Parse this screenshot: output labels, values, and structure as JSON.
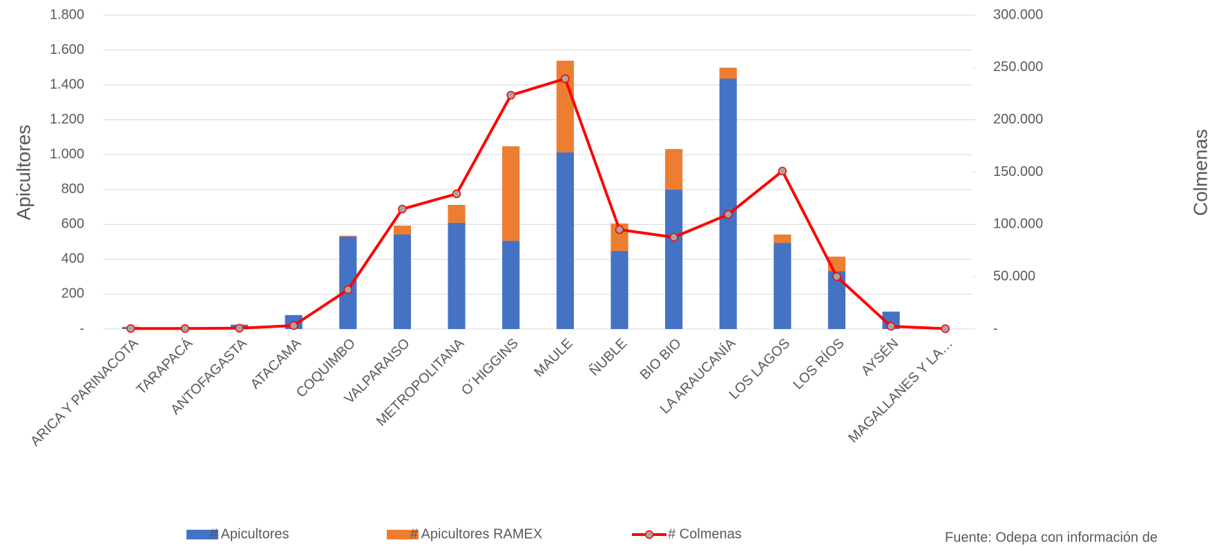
{
  "chart_data": {
    "type": "bar_line",
    "y_label": "Apicultores",
    "y2_label": "Colmenas",
    "categories": [
      "ARICA Y PARINACOTA",
      "TARAPACÁ",
      "ANTOFAGASTA",
      "ATACAMA",
      "COQUIMBO",
      "VALPARAISO",
      "METROPOLITANA",
      "O´HIGGINS",
      "MAULE",
      "ÑUBLE",
      "BIO BIO",
      "LA ARAUCANÍA",
      "LOS LAGOS",
      "LOS RÍOS",
      "AYSÉN",
      "MAGALLANES Y LA…"
    ],
    "series": [
      {
        "name": "# Apicultores",
        "color": "#4472c4",
        "kind": "bar",
        "values": [
          10,
          8,
          25,
          80,
          530,
          542,
          609,
          506,
          1013,
          447,
          799,
          1436,
          494,
          332,
          100,
          0
        ]
      },
      {
        "name": "# Apicultores RAMEX",
        "color": "#ed7d31",
        "kind": "bar",
        "values": [
          3,
          3,
          0,
          0,
          5,
          51,
          103,
          542,
          526,
          158,
          233,
          63,
          48,
          83,
          0,
          0
        ]
      },
      {
        "name": "# Colmenas",
        "color": "#ff0000",
        "kind": "line",
        "axis": "y2",
        "values": [
          500,
          500,
          800,
          3300,
          37600,
          114700,
          129200,
          223500,
          239300,
          95000,
          87700,
          109500,
          151000,
          50100,
          2600,
          300
        ]
      }
    ],
    "ylim": [
      0,
      1800
    ],
    "yticks": [
      {
        "value": 0,
        "label": "-"
      },
      200,
      400,
      600,
      800,
      {
        "value": 1000,
        "label": "1.000"
      },
      {
        "value": 1200,
        "label": "1.200"
      },
      {
        "value": 1400,
        "label": "1.400"
      },
      {
        "value": 1600,
        "label": "1.600"
      },
      {
        "value": 1800,
        "label": "1.800"
      }
    ],
    "y2lim": [
      0,
      300000
    ],
    "y2ticks": [
      {
        "value": 0,
        "label": "-"
      },
      {
        "value": 50000,
        "label": "50.000"
      },
      {
        "value": 100000,
        "label": "100.000"
      },
      {
        "value": 150000,
        "label": "150.000"
      },
      {
        "value": 200000,
        "label": "200.000"
      },
      {
        "value": 250000,
        "label": "250.000"
      },
      {
        "value": 300000,
        "label": "300.000"
      }
    ],
    "grid": true,
    "legend": "bottom",
    "source": "Fuente: Odepa con información de"
  }
}
